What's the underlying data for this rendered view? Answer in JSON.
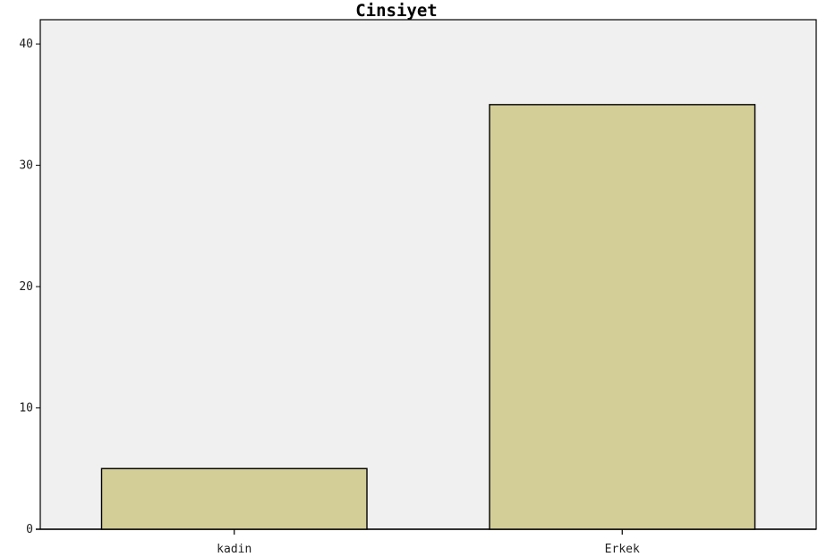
{
  "chart_data": {
    "type": "bar",
    "title": "Cinsiyet",
    "xlabel": "",
    "ylabel": "",
    "categories": [
      "kadin",
      "Erkek"
    ],
    "values": [
      5,
      35
    ],
    "ylim": [
      0,
      42
    ],
    "yticks": [
      "0",
      "10",
      "20",
      "30",
      "40"
    ],
    "grid": false,
    "legend": "none",
    "colors": {
      "plot_background": "#f0f0f0",
      "bar_fill": "#d3cd97",
      "bar_stroke": "#000000",
      "axis": "#000000"
    }
  }
}
